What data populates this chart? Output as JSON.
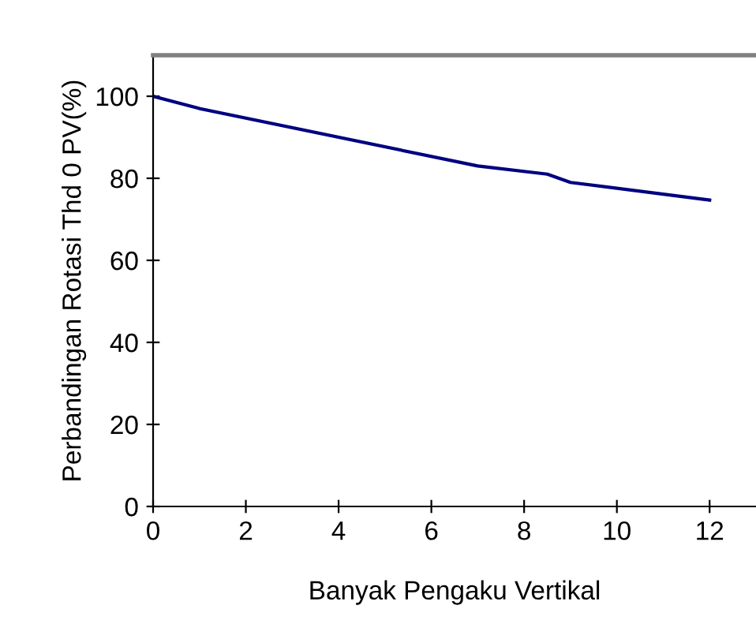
{
  "chart_data": {
    "type": "line",
    "xlabel": "Banyak Pengaku Vertikal",
    "ylabel": "Perbandingan Rotasi Thd 0 PV(%)",
    "x": [
      0,
      1,
      7,
      8.5,
      9,
      12
    ],
    "series": [
      {
        "color": "#000080",
        "values": [
          100,
          97,
          83,
          81,
          79,
          74.7
        ]
      }
    ],
    "xlim": [
      0,
      13
    ],
    "ylim": [
      0,
      110
    ],
    "xticks": [
      0,
      2,
      4,
      6,
      8,
      10,
      12
    ],
    "yticks": [
      0,
      20,
      40,
      60,
      80,
      100
    ],
    "grid": false,
    "legend": false,
    "marker": "none",
    "line_style": "solid"
  }
}
